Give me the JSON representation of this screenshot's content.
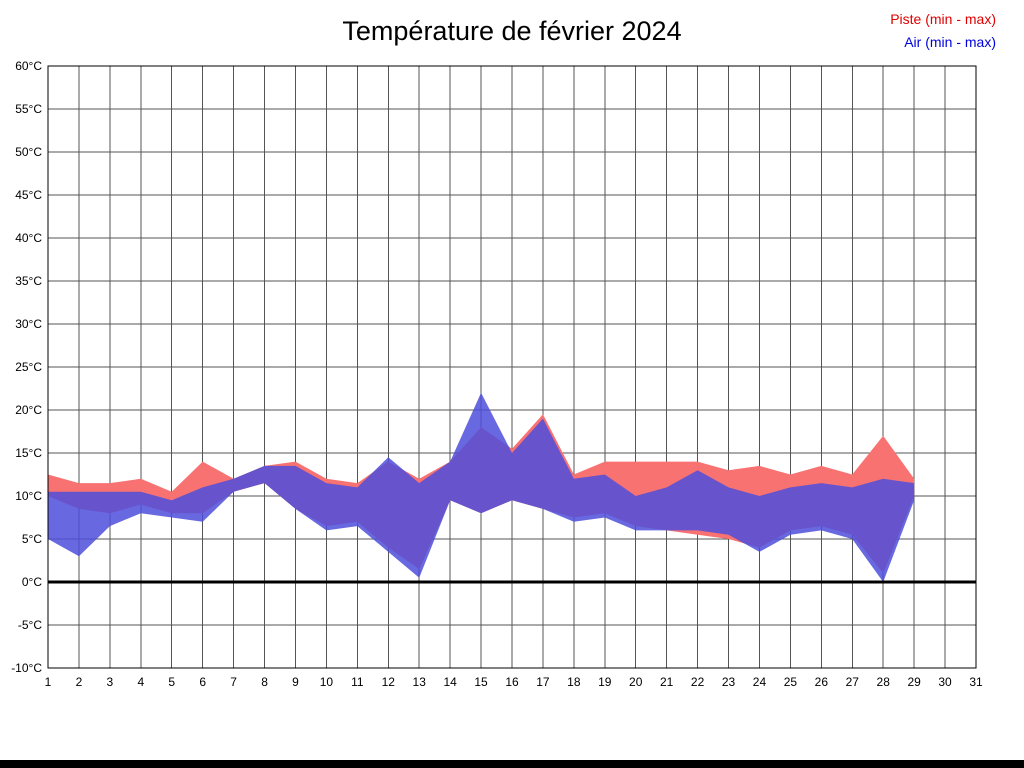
{
  "title": "Température de février 2024",
  "legend": {
    "piste": "Piste (min - max)",
    "air": "Air (min - max)"
  },
  "colors": {
    "piste_band": "#f87272",
    "air_band": "#4d4ddb",
    "piste_text": "#e00000",
    "air_text": "#0000dd",
    "grid": "#555555",
    "axis": "#000000",
    "zero_line": "#000000",
    "background": "#ffffff",
    "footer": "#000000"
  },
  "chart_data": {
    "type": "area",
    "title": "Température de février 2024",
    "xlabel": "",
    "ylabel": "",
    "xlim": [
      1,
      31
    ],
    "ylim": [
      -10,
      60
    ],
    "grid": true,
    "legend_position": "top-right",
    "days": [
      1,
      2,
      3,
      4,
      5,
      6,
      7,
      8,
      9,
      10,
      11,
      12,
      13,
      14,
      15,
      16,
      17,
      18,
      19,
      20,
      21,
      22,
      23,
      24,
      25,
      26,
      27,
      28,
      29
    ],
    "x_tick_labels": [
      "1",
      "2",
      "3",
      "4",
      "5",
      "6",
      "7",
      "8",
      "9",
      "10",
      "11",
      "12",
      "13",
      "14",
      "15",
      "16",
      "17",
      "18",
      "19",
      "20",
      "21",
      "22",
      "23",
      "24",
      "25",
      "26",
      "27",
      "28",
      "29",
      "30",
      "31"
    ],
    "y_tick_values": [
      60,
      55,
      50,
      45,
      40,
      35,
      30,
      25,
      20,
      15,
      10,
      5,
      0,
      -5,
      -10
    ],
    "y_tick_labels": [
      "60°C",
      "55°C",
      "50°C",
      "45°C",
      "40°C",
      "35°C",
      "30°C",
      "25°C",
      "20°C",
      "15°C",
      "10°C",
      "5°C",
      "0°C",
      "-5°C",
      "-10°C"
    ],
    "series": [
      {
        "name": "Piste min",
        "values": [
          10,
          8.5,
          8,
          9,
          8,
          8,
          10.5,
          11.5,
          8.5,
          6.5,
          7,
          4,
          1.5,
          9.5,
          8,
          9.5,
          8.5,
          7.5,
          8,
          6.5,
          6,
          5.5,
          5,
          4,
          6,
          6.5,
          5.5,
          1,
          10
        ]
      },
      {
        "name": "Piste max",
        "values": [
          12.5,
          11.5,
          11.5,
          12,
          10.5,
          14,
          12,
          13.5,
          14,
          12,
          11.5,
          14,
          12,
          14,
          18,
          15.5,
          19.5,
          12.5,
          14,
          14,
          14,
          14,
          13,
          13.5,
          12.5,
          13.5,
          12.5,
          17,
          12
        ]
      },
      {
        "name": "Air min",
        "values": [
          5,
          3,
          6.5,
          8,
          7.5,
          7,
          10.5,
          11.5,
          8.5,
          6,
          6.5,
          3.5,
          0.5,
          9.5,
          8,
          9.5,
          8.5,
          7,
          7.5,
          6,
          6,
          6,
          5.5,
          3.5,
          5.5,
          6,
          5,
          0,
          9.5
        ]
      },
      {
        "name": "Air max",
        "values": [
          10.5,
          10.5,
          10.5,
          10.5,
          9.5,
          11,
          12,
          13.5,
          13.5,
          11.5,
          11,
          14.5,
          11.5,
          14,
          22,
          15,
          19,
          12,
          12.5,
          10,
          11,
          13,
          11,
          10,
          11,
          11.5,
          11,
          12,
          11.5
        ]
      }
    ]
  }
}
